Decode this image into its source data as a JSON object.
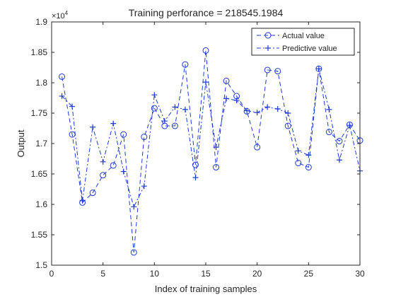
{
  "chart_data": {
    "type": "line",
    "title": "Training perforance = 218545.1984",
    "xlabel": "Index of training samples",
    "ylabel": "Output",
    "xlim": [
      0,
      30
    ],
    "ylim": [
      15000,
      19000
    ],
    "y_exponent_label": "×10",
    "y_exponent_power": "4",
    "x_ticks": [
      0,
      5,
      10,
      15,
      20,
      25,
      30
    ],
    "x_tick_labels": [
      "0",
      "5",
      "10",
      "15",
      "20",
      "25",
      "30"
    ],
    "y_ticks": [
      15000,
      15500,
      16000,
      16500,
      17000,
      17500,
      18000,
      18500,
      19000
    ],
    "y_tick_labels": [
      "1.5",
      "1.55",
      "1.6",
      "1.65",
      "1.7",
      "1.75",
      "1.8",
      "1.85",
      "1.9"
    ],
    "grid": false,
    "legend_position": "top-right",
    "x": [
      1,
      2,
      3,
      4,
      5,
      6,
      7,
      8,
      9,
      10,
      11,
      12,
      13,
      14,
      15,
      16,
      17,
      18,
      19,
      20,
      21,
      22,
      23,
      24,
      25,
      26,
      27,
      28,
      29,
      30
    ],
    "series": [
      {
        "name": "Actual value",
        "marker": "circle",
        "line_style": "dashed",
        "color": "#1f3ad6",
        "values": [
          18100,
          17150,
          16030,
          16190,
          16480,
          16640,
          17150,
          15210,
          17110,
          17580,
          17290,
          17290,
          18300,
          16650,
          18530,
          16610,
          18030,
          17780,
          17530,
          16940,
          18210,
          18190,
          17290,
          16680,
          16610,
          18230,
          17190,
          17040,
          17310,
          17050
        ]
      },
      {
        "name": "Predictive value",
        "marker": "plus",
        "line_style": "dash-dot",
        "color": "#1f3ad6",
        "values": [
          17780,
          17610,
          16060,
          17270,
          16700,
          17330,
          16540,
          15960,
          16300,
          17800,
          17370,
          17600,
          17560,
          16440,
          18010,
          16940,
          17740,
          17710,
          17540,
          17510,
          17600,
          17570,
          17500,
          16880,
          16810,
          18230,
          17560,
          16730,
          17300,
          16550
        ]
      }
    ]
  }
}
